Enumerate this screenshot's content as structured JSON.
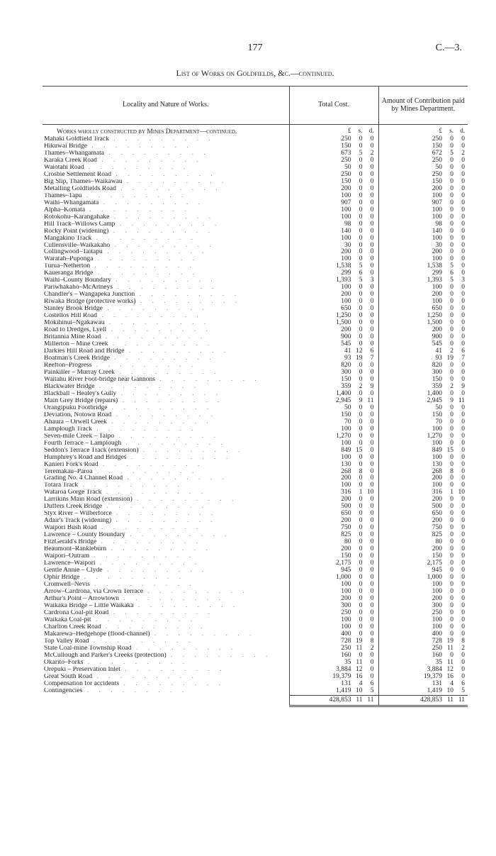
{
  "page_number": "177",
  "doc_ref": "C.—3.",
  "title": "List of Works on Goldfields, &c.—continued.",
  "columns": {
    "locality": "Locality and Nature of Works.",
    "total_cost": "Total Cost.",
    "contribution": "Amount of Contribution paid by Mines Department."
  },
  "section_heading": "Works wholly constructed by Mines Department—continued.",
  "lsd_headers": {
    "l": "£",
    "s": "s.",
    "d": "d."
  },
  "rows": [
    {
      "label": "Mahaki Goldfield Track",
      "cost": [
        "250",
        "0",
        "0"
      ],
      "contrib": [
        "250",
        "0",
        "0"
      ]
    },
    {
      "label": "Hikuwai Bridge",
      "cost": [
        "150",
        "0",
        "0"
      ],
      "contrib": [
        "150",
        "0",
        "0"
      ]
    },
    {
      "label": "Thames–Whangamata",
      "cost": [
        "673",
        "5",
        "2"
      ],
      "contrib": [
        "672",
        "5",
        "2"
      ]
    },
    {
      "label": "Karaka Creek Road",
      "cost": [
        "250",
        "0",
        "0"
      ],
      "contrib": [
        "250",
        "0",
        "0"
      ]
    },
    {
      "label": "Waiotahi Road",
      "cost": [
        "50",
        "0",
        "0"
      ],
      "contrib": [
        "50",
        "0",
        "0"
      ]
    },
    {
      "label": "Crosbie Settlement Road",
      "cost": [
        "250",
        "0",
        "0"
      ],
      "contrib": [
        "250",
        "0",
        "0"
      ]
    },
    {
      "label": "Big Slip, Thames–Waikawau",
      "cost": [
        "150",
        "0",
        "0"
      ],
      "contrib": [
        "150",
        "0",
        "0"
      ]
    },
    {
      "label": "Metalling Goldfields Road",
      "cost": [
        "200",
        "0",
        "0"
      ],
      "contrib": [
        "200",
        "0",
        "0"
      ]
    },
    {
      "label": "Thames–Tapu",
      "cost": [
        "100",
        "0",
        "0"
      ],
      "contrib": [
        "100",
        "0",
        "0"
      ]
    },
    {
      "label": "Waihi–Whangamata",
      "cost": [
        "907",
        "0",
        "0"
      ],
      "contrib": [
        "907",
        "0",
        "0"
      ]
    },
    {
      "label": "Alpha–Komata",
      "cost": [
        "100",
        "0",
        "0"
      ],
      "contrib": [
        "100",
        "0",
        "0"
      ]
    },
    {
      "label": "Rotokohu–Karangahake",
      "cost": [
        "100",
        "0",
        "0"
      ],
      "contrib": [
        "100",
        "0",
        "0"
      ]
    },
    {
      "label": "Hill Track–Willows Camp",
      "cost": [
        "98",
        "0",
        "0"
      ],
      "contrib": [
        "98",
        "0",
        "0"
      ]
    },
    {
      "label": "Rocky Point (widening)",
      "cost": [
        "140",
        "0",
        "0"
      ],
      "contrib": [
        "140",
        "0",
        "0"
      ]
    },
    {
      "label": "Mangakino Track",
      "cost": [
        "100",
        "0",
        "0"
      ],
      "contrib": [
        "100",
        "0",
        "0"
      ]
    },
    {
      "label": "Cullensville–Waikakaho",
      "cost": [
        "30",
        "0",
        "0"
      ],
      "contrib": [
        "30",
        "0",
        "0"
      ]
    },
    {
      "label": "Collingwood–Taitapu",
      "cost": [
        "200",
        "0",
        "0"
      ],
      "contrib": [
        "200",
        "0",
        "0"
      ]
    },
    {
      "label": "Waratah–Puponga",
      "cost": [
        "100",
        "0",
        "0"
      ],
      "contrib": [
        "100",
        "0",
        "0"
      ]
    },
    {
      "label": "Turua–Netherton",
      "cost": [
        "1,538",
        "5",
        "0"
      ],
      "contrib": [
        "1,538",
        "5",
        "0"
      ]
    },
    {
      "label": "Kaueranga Bridge",
      "cost": [
        "299",
        "6",
        "0"
      ],
      "contrib": [
        "299",
        "6",
        "0"
      ]
    },
    {
      "label": "Waihi–County Boundary",
      "cost": [
        "1,393",
        "5",
        "3"
      ],
      "contrib": [
        "1,393",
        "5",
        "3"
      ]
    },
    {
      "label": "Pariwhakaho–McArtneys",
      "cost": [
        "100",
        "0",
        "0"
      ],
      "contrib": [
        "100",
        "0",
        "0"
      ]
    },
    {
      "label": "Chandler's – Wangapeka Junction",
      "cost": [
        "200",
        "0",
        "0"
      ],
      "contrib": [
        "200",
        "0",
        "0"
      ]
    },
    {
      "label": "Riwaka Bridge (protective works)",
      "cost": [
        "100",
        "0",
        "0"
      ],
      "contrib": [
        "100",
        "0",
        "0"
      ]
    },
    {
      "label": "Stanley Brook Bridge",
      "cost": [
        "650",
        "0",
        "0"
      ],
      "contrib": [
        "650",
        "0",
        "0"
      ]
    },
    {
      "label": "Costellos Hill Road",
      "cost": [
        "1,250",
        "0",
        "0"
      ],
      "contrib": [
        "1,250",
        "0",
        "0"
      ]
    },
    {
      "label": "Mokihinui–Ngakawau",
      "cost": [
        "1,500",
        "0",
        "0"
      ],
      "contrib": [
        "1,500",
        "0",
        "0"
      ]
    },
    {
      "label": "Road to Dredges, Lyell",
      "cost": [
        "200",
        "0",
        "0"
      ],
      "contrib": [
        "200",
        "0",
        "0"
      ]
    },
    {
      "label": "Britannia Mine Road",
      "cost": [
        "900",
        "0",
        "0"
      ],
      "contrib": [
        "900",
        "0",
        "0"
      ]
    },
    {
      "label": "Millerton – Mine Creek",
      "cost": [
        "545",
        "0",
        "0"
      ],
      "contrib": [
        "545",
        "0",
        "0"
      ]
    },
    {
      "label": "Darkies Hill Road and Bridge",
      "cost": [
        "41",
        "12",
        "6"
      ],
      "contrib": [
        "41",
        "2",
        "6"
      ]
    },
    {
      "label": "Boatman's Creek Bridge",
      "cost": [
        "93",
        "19",
        "7"
      ],
      "contrib": [
        "93",
        "19",
        "7"
      ]
    },
    {
      "label": "Reefton–Progress",
      "cost": [
        "820",
        "0",
        "0"
      ],
      "contrib": [
        "820",
        "0",
        "0"
      ]
    },
    {
      "label": "Painkiller – Murray Creek",
      "cost": [
        "300",
        "0",
        "0"
      ],
      "contrib": [
        "300",
        "0",
        "0"
      ]
    },
    {
      "label": "Waitahu River Foot-bridge near Gannons",
      "cost": [
        "150",
        "0",
        "0"
      ],
      "contrib": [
        "150",
        "0",
        "0"
      ]
    },
    {
      "label": "Blackwater Bridge",
      "cost": [
        "359",
        "2",
        "9"
      ],
      "contrib": [
        "359",
        "2",
        "9"
      ]
    },
    {
      "label": "Blackball – Healey's Gully",
      "cost": [
        "1,400",
        "0",
        "0"
      ],
      "contrib": [
        "1,400",
        "0",
        "0"
      ]
    },
    {
      "label": "Main Grey Bridge (repairs)",
      "cost": [
        "2,945",
        "9",
        "11"
      ],
      "contrib": [
        "2,945",
        "9",
        "11"
      ]
    },
    {
      "label": "Orangipuku Footbridge",
      "cost": [
        "50",
        "0",
        "0"
      ],
      "contrib": [
        "50",
        "0",
        "0"
      ]
    },
    {
      "label": "Deviation, Notown Road",
      "cost": [
        "150",
        "0",
        "0"
      ],
      "contrib": [
        "150",
        "0",
        "0"
      ]
    },
    {
      "label": "Ahaura – Orwell Creek",
      "cost": [
        "70",
        "0",
        "0"
      ],
      "contrib": [
        "70",
        "0",
        "0"
      ]
    },
    {
      "label": "Lamplough Track",
      "cost": [
        "100",
        "0",
        "0"
      ],
      "contrib": [
        "100",
        "0",
        "0"
      ]
    },
    {
      "label": "Seven-mile Creek – Taipo",
      "cost": [
        "1,270",
        "0",
        "0"
      ],
      "contrib": [
        "1,270",
        "0",
        "0"
      ]
    },
    {
      "label": "Fourth Terrace – Lamplough",
      "cost": [
        "100",
        "0",
        "0"
      ],
      "contrib": [
        "100",
        "0",
        "0"
      ]
    },
    {
      "label": "Seddon's Terrace Track (extension)",
      "cost": [
        "849",
        "15",
        "0"
      ],
      "contrib": [
        "849",
        "15",
        "0"
      ]
    },
    {
      "label": "Humphrey's Road and Bridges",
      "cost": [
        "100",
        "0",
        "0"
      ],
      "contrib": [
        "100",
        "0",
        "0"
      ]
    },
    {
      "label": "Kanieri Fork's Road",
      "cost": [
        "130",
        "0",
        "0"
      ],
      "contrib": [
        "130",
        "0",
        "0"
      ]
    },
    {
      "label": "Teremakau–Paroa",
      "cost": [
        "268",
        "8",
        "0"
      ],
      "contrib": [
        "268",
        "8",
        "0"
      ]
    },
    {
      "label": "Grading No. 4 Channel Road",
      "cost": [
        "200",
        "0",
        "0"
      ],
      "contrib": [
        "200",
        "0",
        "0"
      ]
    },
    {
      "label": "Totara Track",
      "cost": [
        "100",
        "0",
        "0"
      ],
      "contrib": [
        "100",
        "0",
        "0"
      ]
    },
    {
      "label": "Wataroa Gorge Track",
      "cost": [
        "316",
        "1",
        "10"
      ],
      "contrib": [
        "316",
        "1",
        "10"
      ]
    },
    {
      "label": "Larrikins Main Road (extension)",
      "cost": [
        "200",
        "0",
        "0"
      ],
      "contrib": [
        "200",
        "0",
        "0"
      ]
    },
    {
      "label": "Duffers Creek Bridge",
      "cost": [
        "500",
        "0",
        "0"
      ],
      "contrib": [
        "500",
        "0",
        "0"
      ]
    },
    {
      "label": "Styx River – Wilberforce",
      "cost": [
        "650",
        "0",
        "0"
      ],
      "contrib": [
        "650",
        "0",
        "0"
      ]
    },
    {
      "label": "Adair's Track (widening)",
      "cost": [
        "200",
        "0",
        "0"
      ],
      "contrib": [
        "200",
        "0",
        "0"
      ]
    },
    {
      "label": "Waipori Bush Road",
      "cost": [
        "750",
        "0",
        "0"
      ],
      "contrib": [
        "750",
        "0",
        "0"
      ]
    },
    {
      "label": "Lawrence – County Boundary",
      "cost": [
        "825",
        "0",
        "0"
      ],
      "contrib": [
        "825",
        "0",
        "0"
      ]
    },
    {
      "label": "FitzGerald's Bridge",
      "cost": [
        "80",
        "0",
        "0"
      ],
      "contrib": [
        "80",
        "0",
        "0"
      ]
    },
    {
      "label": "Beaumont–Rankleburn",
      "cost": [
        "200",
        "0",
        "0"
      ],
      "contrib": [
        "200",
        "0",
        "0"
      ]
    },
    {
      "label": "Waipori–Outram",
      "cost": [
        "150",
        "0",
        "0"
      ],
      "contrib": [
        "150",
        "0",
        "0"
      ]
    },
    {
      "label": "Lawrence–Waipori",
      "cost": [
        "2,175",
        "0",
        "0"
      ],
      "contrib": [
        "2,175",
        "0",
        "0"
      ]
    },
    {
      "label": "Gentle Annie – Clyde",
      "cost": [
        "945",
        "0",
        "0"
      ],
      "contrib": [
        "945",
        "0",
        "0"
      ]
    },
    {
      "label": "Ophir Bridge",
      "cost": [
        "1,000",
        "0",
        "0"
      ],
      "contrib": [
        "1,000",
        "0",
        "0"
      ]
    },
    {
      "label": "Cromwell–Nevis",
      "cost": [
        "100",
        "0",
        "0"
      ],
      "contrib": [
        "100",
        "0",
        "0"
      ]
    },
    {
      "label": "Arrow–Cardrona, via Crown Terrace",
      "cost": [
        "100",
        "0",
        "0"
      ],
      "contrib": [
        "100",
        "0",
        "0"
      ]
    },
    {
      "label": "Arthur's Point – Arrowtown",
      "cost": [
        "200",
        "0",
        "0"
      ],
      "contrib": [
        "200",
        "0",
        "0"
      ]
    },
    {
      "label": "Waikaka Bridge – Little Waikaka",
      "cost": [
        "300",
        "0",
        "0"
      ],
      "contrib": [
        "300",
        "0",
        "0"
      ]
    },
    {
      "label": "Cardrona Coal-pit Road",
      "cost": [
        "250",
        "0",
        "0"
      ],
      "contrib": [
        "250",
        "0",
        "0"
      ]
    },
    {
      "label": "Waikaka Coal-pit",
      "cost": [
        "100",
        "0",
        "0"
      ],
      "contrib": [
        "100",
        "0",
        "0"
      ]
    },
    {
      "label": "Charlton Creek Road",
      "cost": [
        "100",
        "0",
        "0"
      ],
      "contrib": [
        "100",
        "0",
        "0"
      ]
    },
    {
      "label": "Makarewa–Hedgehope (flood-channel)",
      "cost": [
        "400",
        "0",
        "0"
      ],
      "contrib": [
        "400",
        "0",
        "0"
      ]
    },
    {
      "label": "Top Valley Road",
      "cost": [
        "728",
        "19",
        "8"
      ],
      "contrib": [
        "728",
        "19",
        "8"
      ]
    },
    {
      "label": "State Coal-mine Township Road",
      "cost": [
        "250",
        "11",
        "2"
      ],
      "contrib": [
        "250",
        "11",
        "2"
      ]
    },
    {
      "label": "McCullough and Parker's Creeks (protection)",
      "cost": [
        "160",
        "0",
        "0"
      ],
      "contrib": [
        "160",
        "0",
        "0"
      ]
    },
    {
      "label": "Okarito–Forks",
      "cost": [
        "35",
        "11",
        "0"
      ],
      "contrib": [
        "35",
        "11",
        "0"
      ]
    },
    {
      "label": "Orepuki – Preservation Inlet",
      "cost": [
        "3,884",
        "12",
        "0"
      ],
      "contrib": [
        "3,884",
        "12",
        "0"
      ]
    },
    {
      "label": "Great South Road",
      "cost": [
        "19,379",
        "16",
        "0"
      ],
      "contrib": [
        "19,379",
        "16",
        "0"
      ]
    },
    {
      "label": "Compensation for accidents",
      "cost": [
        "131",
        "4",
        "6"
      ],
      "contrib": [
        "131",
        "4",
        "6"
      ]
    },
    {
      "label": "Contingencies",
      "cost": [
        "1,419",
        "10",
        "5"
      ],
      "contrib": [
        "1,419",
        "10",
        "5"
      ]
    }
  ],
  "total": {
    "cost": [
      "428,853",
      "11",
      "11"
    ],
    "contrib": [
      "428,853",
      "11",
      "11"
    ]
  }
}
